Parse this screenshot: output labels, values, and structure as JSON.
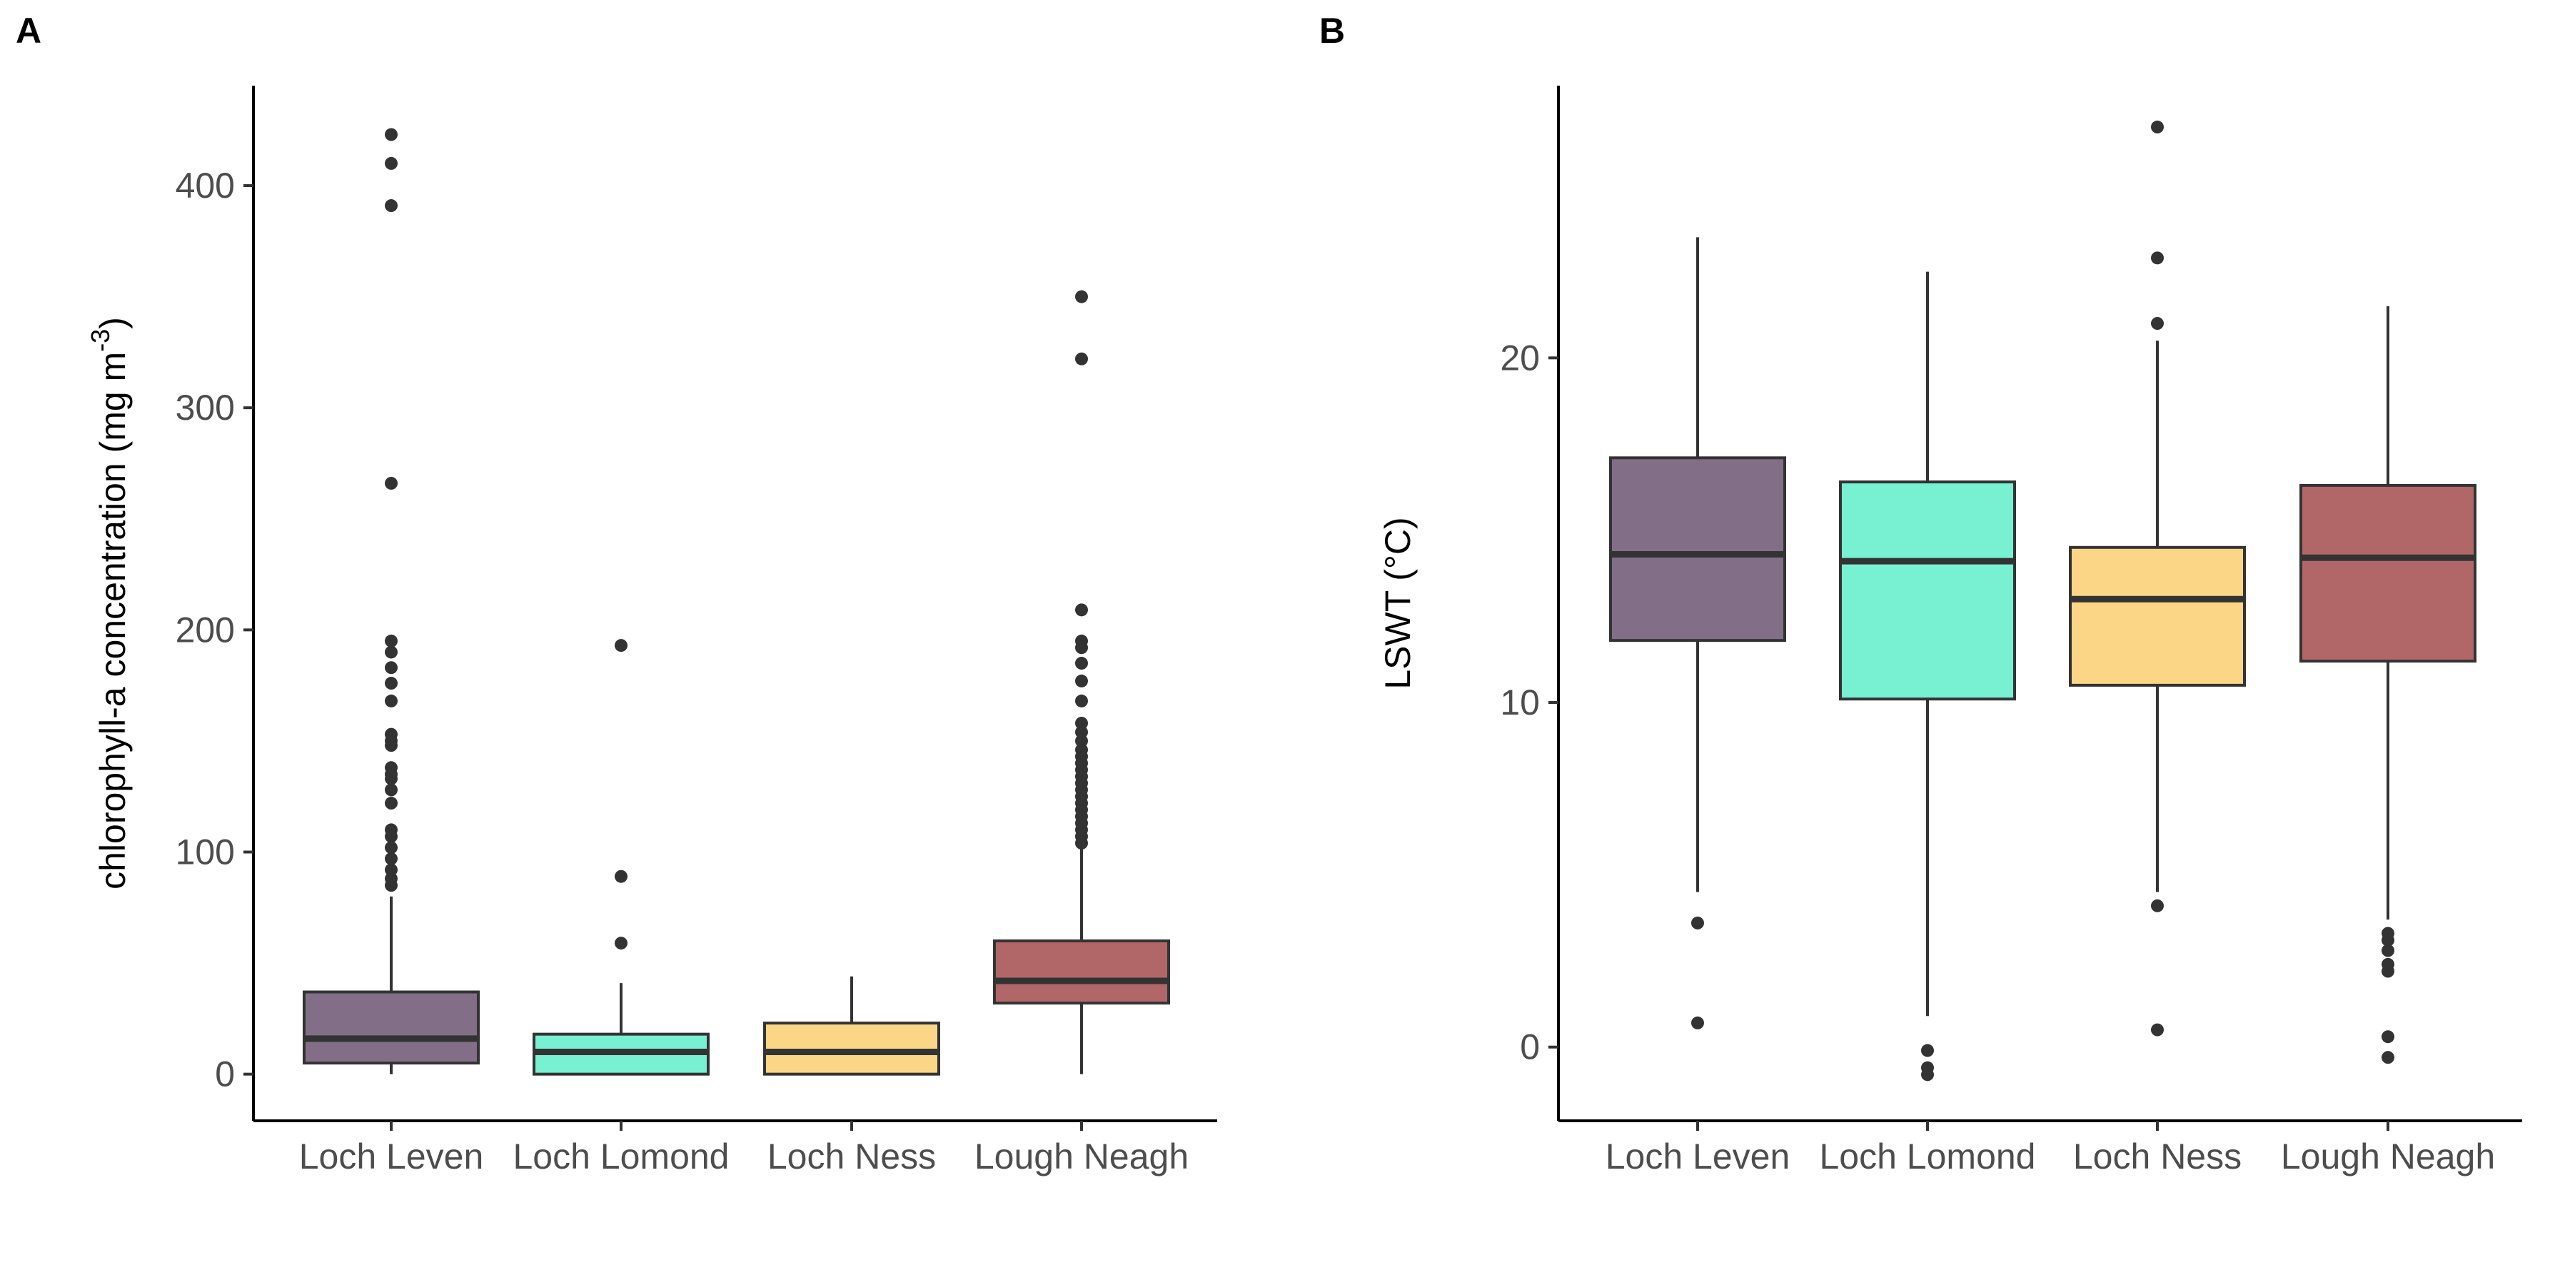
{
  "chart_data": [
    {
      "type": "boxplot",
      "panel_label": "A",
      "ylabel": "chlorophyll-a concentration (mg m",
      "ylabel_sup": "-3",
      "ylabel_close": ")",
      "ylim": [
        -21,
        445
      ],
      "yticks": [
        0,
        100,
        200,
        300,
        400
      ],
      "categories": [
        "Loch Leven",
        "Loch Lomond",
        "Loch Ness",
        "Lough Neagh"
      ],
      "colors": [
        "#826f87",
        "#78f0d2",
        "#fbd687",
        "#b16768"
      ],
      "boxes": [
        {
          "category": "Loch Leven",
          "whisker_low": 0,
          "q1": 5,
          "median": 16,
          "q3": 37,
          "whisker_high": 80,
          "outliers": [
            85,
            88,
            92,
            97,
            102,
            107,
            110,
            122,
            128,
            133,
            135,
            138,
            148,
            150,
            153,
            168,
            176,
            183,
            190,
            195,
            266,
            391,
            410,
            423
          ]
        },
        {
          "category": "Loch Lomond",
          "whisker_low": 0,
          "q1": 0,
          "median": 10,
          "q3": 18,
          "whisker_high": 41,
          "outliers": [
            59,
            89,
            193
          ]
        },
        {
          "category": "Loch Ness",
          "whisker_low": 0,
          "q1": 0,
          "median": 10,
          "q3": 23,
          "whisker_high": 44,
          "outliers": []
        },
        {
          "category": "Lough Neagh",
          "whisker_low": 0,
          "q1": 32,
          "median": 42,
          "q3": 60,
          "whisker_high": 102,
          "outliers": [
            104,
            107,
            110,
            113,
            116,
            119,
            122,
            125,
            128,
            131,
            134,
            137,
            140,
            143,
            146,
            150,
            154,
            158,
            168,
            177,
            185,
            192,
            195,
            209,
            322,
            350
          ]
        }
      ]
    },
    {
      "type": "boxplot",
      "panel_label": "B",
      "ylabel": "LSWT (°C)",
      "ylim": [
        -2.14,
        27.9
      ],
      "yticks": [
        0,
        10,
        20
      ],
      "categories": [
        "Loch Leven",
        "Loch Lomond",
        "Loch Ness",
        "Lough Neagh"
      ],
      "colors": [
        "#826f87",
        "#78f0d2",
        "#fbd687",
        "#b16768"
      ],
      "boxes": [
        {
          "category": "Loch Leven",
          "whisker_low": 4.5,
          "q1": 11.8,
          "median": 14.3,
          "q3": 17.1,
          "whisker_high": 23.5,
          "outliers": [
            0.7,
            3.6
          ]
        },
        {
          "category": "Loch Lomond",
          "whisker_low": 0.9,
          "q1": 10.1,
          "median": 14.1,
          "q3": 16.4,
          "whisker_high": 22.5,
          "outliers": [
            -0.8,
            -0.6,
            -0.1
          ]
        },
        {
          "category": "Loch Ness",
          "whisker_low": 4.5,
          "q1": 10.5,
          "median": 13.0,
          "q3": 14.5,
          "whisker_high": 20.5,
          "outliers": [
            0.5,
            4.1,
            21.0,
            22.9,
            26.7
          ]
        },
        {
          "category": "Lough Neagh",
          "whisker_low": 3.7,
          "q1": 11.2,
          "median": 14.2,
          "q3": 16.3,
          "whisker_high": 21.5,
          "outliers": [
            -0.3,
            0.3,
            2.2,
            2.4,
            2.8,
            3.1,
            3.3
          ]
        }
      ]
    }
  ]
}
